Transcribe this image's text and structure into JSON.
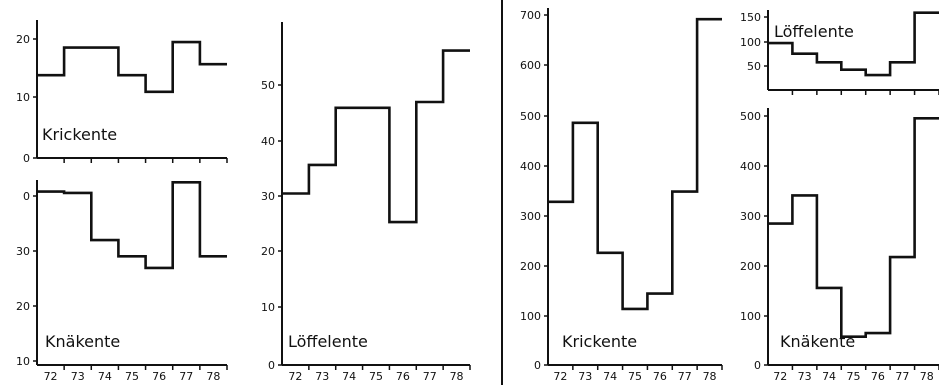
{
  "chart_data": [
    {
      "type": "line",
      "step": true,
      "label": "Krickente",
      "x": [
        "72",
        "73",
        "74",
        "75",
        "76",
        "77",
        "78"
      ],
      "values": [
        15,
        20,
        20,
        15,
        12,
        21,
        17
      ],
      "yticks": [
        "0",
        "10",
        "20"
      ],
      "ylim": [
        0,
        25
      ],
      "show_xticklabels": false
    },
    {
      "type": "line",
      "step": true,
      "label": "Knäkente",
      "x": [
        "72",
        "73",
        "74",
        "75",
        "76",
        "77",
        "78"
      ],
      "values": [
        2.5,
        2.8,
        13,
        16.5,
        19,
        0.5,
        16.5
      ],
      "yticks": [
        "0",
        "30",
        "20",
        "10"
      ],
      "ylim": [
        0,
        40
      ],
      "inverted": true,
      "show_xticklabels": true
    },
    {
      "type": "line",
      "step": true,
      "label": "Löffelente",
      "x": [
        "72",
        "73",
        "74",
        "75",
        "76",
        "77",
        "78"
      ],
      "values": [
        30,
        35,
        45,
        45,
        25,
        46,
        55
      ],
      "yticks": [
        "0",
        "10",
        "20",
        "30",
        "40",
        "50"
      ],
      "ylim": [
        0,
        60
      ],
      "show_xticklabels": true
    },
    {
      "type": "line",
      "step": true,
      "label": "Krickente",
      "x": [
        "72",
        "73",
        "74",
        "75",
        "76",
        "77",
        "78"
      ],
      "values": [
        320,
        475,
        220,
        110,
        140,
        340,
        678
      ],
      "yticks": [
        "0",
        "100",
        "200",
        "300",
        "400",
        "500",
        "600",
        "700"
      ],
      "ylim": [
        0,
        700
      ],
      "show_xticklabels": true
    },
    {
      "type": "line",
      "step": true,
      "label": "Löffelente",
      "x": [
        "72",
        "73",
        "74",
        "75",
        "76",
        "77",
        "78"
      ],
      "values": [
        88,
        68,
        52,
        38,
        28,
        52,
        145
      ],
      "yticks": [
        "50",
        "100",
        "150"
      ],
      "ylim": [
        0,
        150
      ],
      "show_xticklabels": false
    },
    {
      "type": "line",
      "step": true,
      "label": "Knäkente",
      "x": [
        "72",
        "73",
        "74",
        "75",
        "76",
        "77",
        "78"
      ],
      "values": [
        275,
        330,
        150,
        55,
        62,
        210,
        480
      ],
      "yticks": [
        "0",
        "100",
        "200",
        "300",
        "400",
        "500"
      ],
      "ylim": [
        0,
        500
      ],
      "show_xticklabels": true
    }
  ]
}
